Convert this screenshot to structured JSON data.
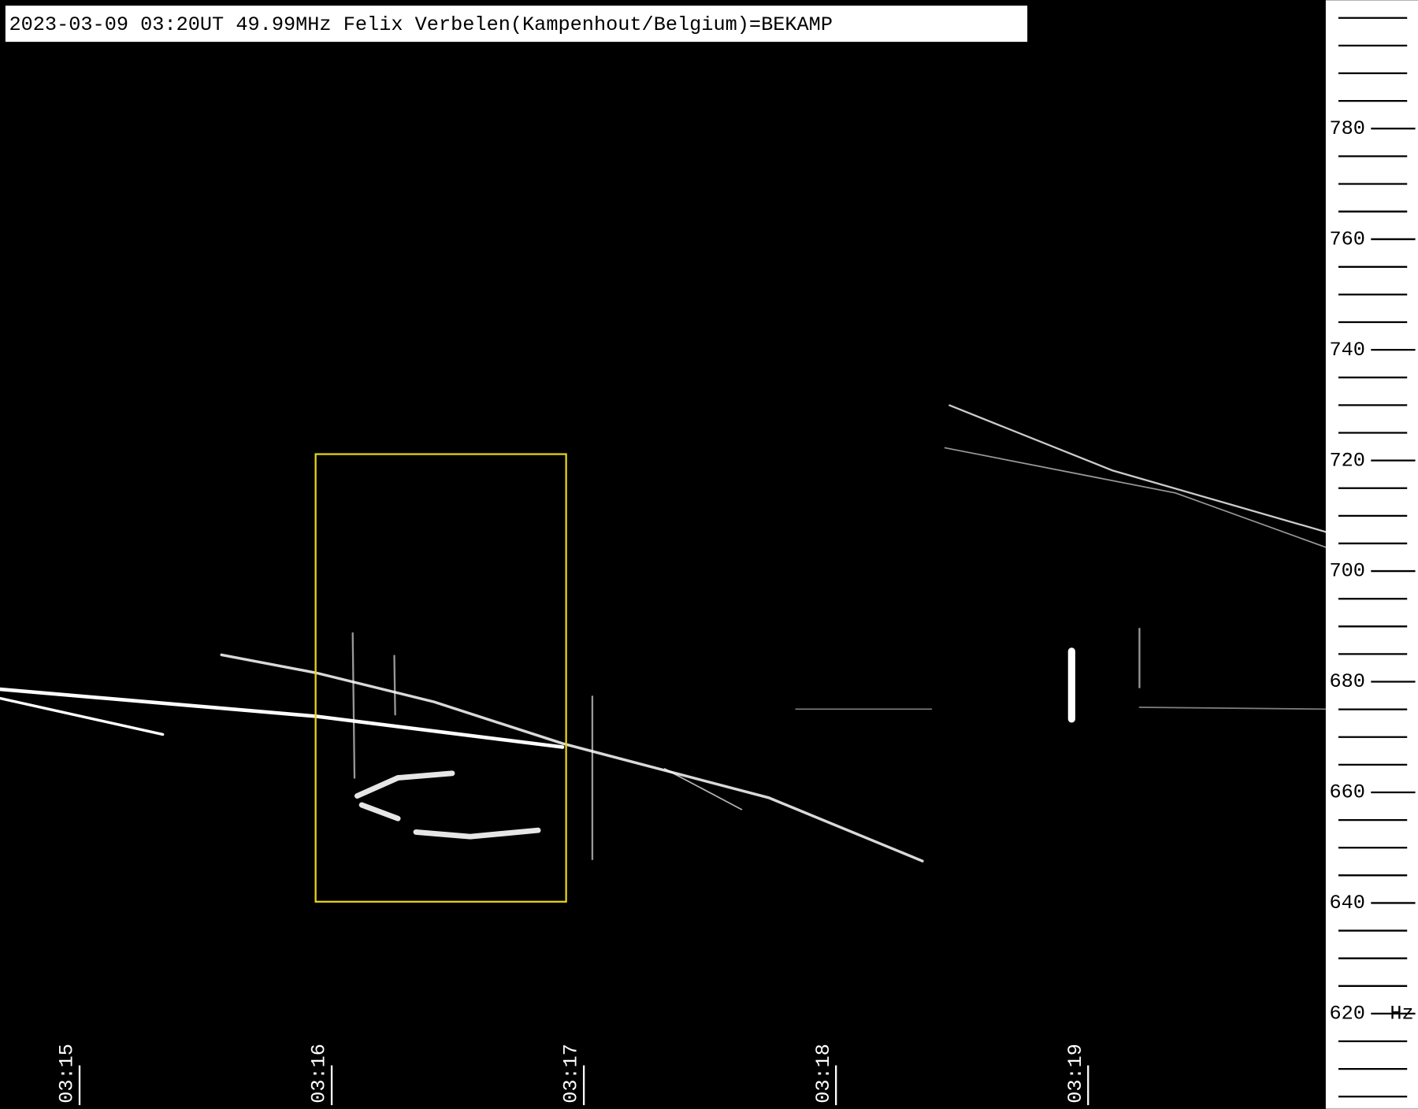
{
  "chart_data": {
    "type": "spectrogram",
    "title": "2023-03-09 03:20UT 49.99MHz Felix Verbelen(Kampenhout/Belgium)=BEKAMP",
    "y_unit": "Hz",
    "ylim": [
      602.8,
      803.2
    ],
    "yticks": [
      620,
      640,
      660,
      680,
      700,
      720,
      740,
      760,
      780
    ],
    "minor_yticks": [
      605,
      610,
      615,
      625,
      630,
      635,
      645,
      650,
      655,
      665,
      670,
      675,
      685,
      690,
      695,
      705,
      710,
      715,
      725,
      730,
      735,
      745,
      750,
      755,
      765,
      770,
      775,
      785,
      790,
      795,
      800
    ],
    "x_ticks": [
      "03:15",
      "03:16",
      "03:17",
      "03:18",
      "03:19"
    ]
  }
}
